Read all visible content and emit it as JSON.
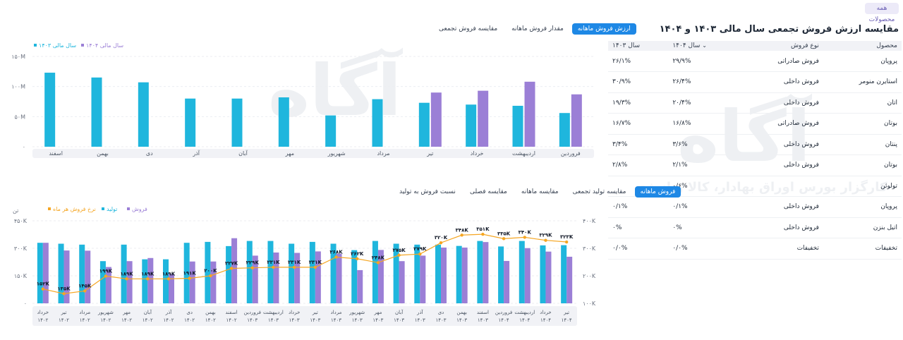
{
  "header": {
    "all_products": "همه محصولات",
    "title": "مقایسه ارزش فروش تجمعی سال مالی ۱۴۰۳ و ۱۴۰۴"
  },
  "table": {
    "headers": [
      "محصول",
      "نوع فروش",
      "سال ۱۴۰۴",
      "سال ۱۴۰۳"
    ],
    "rows": [
      [
        "پروپان",
        "فروش صادراتی",
        "۲۹/۹%",
        "۲۶/۱%"
      ],
      [
        "استایرن منومر",
        "فروش داخلی",
        "۲۶/۴%",
        "۳۰/۹%"
      ],
      [
        "اتان",
        "فروش داخلی",
        "۲۰/۴%",
        "۱۹/۳%"
      ],
      [
        "بوتان",
        "فروش صادراتی",
        "۱۶/۸%",
        "۱۶/۷%"
      ],
      [
        "پنتان",
        "فروش داخلی",
        "۳/۶%",
        "۳/۴%"
      ],
      [
        "بوتان",
        "فروش داخلی",
        "۲/۱%",
        "۲/۸%"
      ],
      [
        "تولوئن",
        "",
        "۰/۶%",
        ""
      ],
      [
        "پروپان",
        "فروش داخلی",
        "۰/۱%",
        "۰/۱%"
      ],
      [
        "اتیل بنزن",
        "فروش داخلی",
        "۰%",
        "۰%"
      ],
      [
        "تخفیفات",
        "تخفیفات",
        "۰/۰%",
        "۰/۰%"
      ]
    ]
  },
  "tabs_top": [
    "ارزش فروش ماهانه",
    "مقدار فروش ماهانه",
    "مقایسه فروش تجمعی"
  ],
  "tabs_bottom": [
    "فروش ماهانه",
    "مقایسه تولید تجمعی",
    "مقایسه ماهانه",
    "مقایسه فصلی",
    "نسبت فروش به تولید"
  ],
  "watermark": {
    "logo": "آگاه",
    "tagline": "کارگزار بورس اوراق بهادار، کالا و انرژی"
  },
  "colors": {
    "cyan": "#1fb6dd",
    "purple": "#9b7fd6",
    "orange": "#f5a623",
    "accent": "#1e88e5"
  },
  "chart_data": [
    {
      "type": "bar",
      "legend": [
        "سال مالی ۱۴۰۳",
        "سال مالی ۱۴۰۴"
      ],
      "legend_position": "top-left",
      "yticks": [
        "۰",
        "۵۰M",
        "۱۰۰M",
        "۱۵۰M"
      ],
      "ylim": [
        0,
        150
      ],
      "categories": [
        "فروردین",
        "اردیبهشت",
        "خرداد",
        "تیر",
        "مرداد",
        "شهریور",
        "مهر",
        "آبان",
        "آذر",
        "دی",
        "بهمن",
        "اسفند"
      ],
      "series": [
        {
          "name": "سال مالی ۱۴۰۳",
          "values": [
            56,
            68,
            70,
            73,
            79,
            52,
            82,
            80,
            80,
            107,
            115,
            123
          ]
        },
        {
          "name": "سال مالی ۱۴۰۴",
          "values": [
            87,
            108,
            93,
            90,
            null,
            null,
            null,
            null,
            null,
            null,
            null,
            null
          ]
        }
      ]
    },
    {
      "type": "bar",
      "legend": [
        "فروش",
        "تولید",
        "نرخ فروش هر ماه"
      ],
      "legend_position": "top-left",
      "left_unit": "تن",
      "yticks_left": [
        "۰",
        "۱۵۰K",
        "۳۰۰K",
        "۴۵۰K"
      ],
      "yticks_right": [
        "۱۰۰K",
        "۲۰۰K",
        "۳۰۰K",
        "۴۰۰K"
      ],
      "ylim_left": [
        0,
        450
      ],
      "ylim_right": [
        100,
        400
      ],
      "categories": [
        [
          "خرداد",
          "۱۴۰۲"
        ],
        [
          "تیر",
          "۱۴۰۲"
        ],
        [
          "مرداد",
          "۱۴۰۲"
        ],
        [
          "شهریور",
          "۱۴۰۲"
        ],
        [
          "مهر",
          "۱۴۰۲"
        ],
        [
          "آبان",
          "۱۴۰۲"
        ],
        [
          "آذر",
          "۱۴۰۲"
        ],
        [
          "دی",
          "۱۴۰۲"
        ],
        [
          "بهمن",
          "۱۴۰۲"
        ],
        [
          "اسفند",
          "۱۴۰۲"
        ],
        [
          "فروردین",
          "۱۴۰۳"
        ],
        [
          "اردیبهشت",
          "۱۴۰۳"
        ],
        [
          "خرداد",
          "۱۴۰۳"
        ],
        [
          "تیر",
          "۱۴۰۳"
        ],
        [
          "مرداد",
          "۱۴۰۳"
        ],
        [
          "شهریور",
          "۱۴۰۳"
        ],
        [
          "مهر",
          "۱۴۰۳"
        ],
        [
          "آبان",
          "۱۴۰۳"
        ],
        [
          "آذر",
          "۱۴۰۳"
        ],
        [
          "دی",
          "۱۴۰۳"
        ],
        [
          "بهمن",
          "۱۴۰۳"
        ],
        [
          "اسفند",
          "۱۴۰۳"
        ],
        [
          "فروردین",
          "۱۴۰۴"
        ],
        [
          "اردیبهشت",
          "۱۴۰۴"
        ],
        [
          "خرداد",
          "۱۴۰۴"
        ],
        [
          "تیر",
          "۱۴۰۴"
        ]
      ],
      "series": [
        {
          "name": "تولید",
          "axis": "left",
          "values": [
            330,
            325,
            320,
            230,
            320,
            240,
            240,
            330,
            335,
            312,
            340,
            340,
            325,
            335,
            325,
            290,
            340,
            325,
            320,
            320,
            313,
            340,
            310,
            340,
            316,
            317
          ]
        },
        {
          "name": "فروش",
          "axis": "left",
          "values": [
            330,
            288,
            287,
            198,
            230,
            247,
            160,
            228,
            228,
            355,
            260,
            277,
            275,
            283,
            270,
            181,
            291,
            230,
            260,
            304,
            304,
            334,
            231,
            301,
            282,
            254
          ]
        },
        {
          "name": "نرخ فروش هر ماه",
          "axis": "right",
          "values": [
            152,
            135,
            145,
            199,
            189,
            189,
            189,
            191,
            200,
            227,
            229,
            231,
            231,
            231,
            268,
            262,
            248,
            275,
            279,
            320,
            348,
            351,
            335,
            340,
            329,
            323
          ]
        }
      ],
      "point_labels": [
        "۱۵۲K",
        "۱۳۵K",
        "۱۴۵K",
        "۱۹۹K",
        "۱۸۹K",
        "۱۸۹K",
        "۱۸۹K",
        "۱۹۱K",
        "۲۰۰K",
        "۲۲۷K",
        "۲۲۹K",
        "۲۳۱K",
        "۲۳۱K",
        "۲۳۱K",
        "۲۶۸K",
        "۲۶۲K",
        "۲۴۸K",
        "۲۷۵K",
        "۲۷۹K",
        "۳۲۰K",
        "۳۴۸K",
        "۳۵۱K",
        "۳۳۵K",
        "۳۴۰K",
        "۳۲۹K",
        "۳۲۳K"
      ]
    }
  ]
}
